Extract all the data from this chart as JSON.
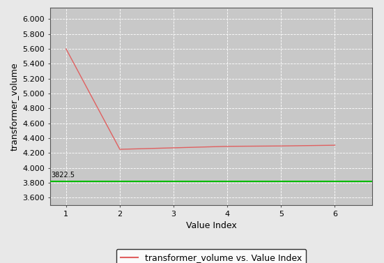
{
  "x": [
    1,
    2,
    3,
    4,
    5,
    6
  ],
  "y_red": [
    5600,
    4250,
    4270,
    4290,
    4295,
    4305
  ],
  "y_green": 3822.5,
  "green_label": "3822.5",
  "xlabel": "Value Index",
  "ylabel": "transformer_volume",
  "legend_label": "transformer_volume vs. Value Index",
  "xlim": [
    0.7,
    6.7
  ],
  "ylim": [
    3500,
    6150
  ],
  "yticks": [
    3600,
    3800,
    4000,
    4200,
    4400,
    4600,
    4800,
    5000,
    5200,
    5400,
    5600,
    5800,
    6000
  ],
  "ytick_labels": [
    "3.600",
    "3.800",
    "4.000",
    "4.200",
    "4.400",
    "4.600",
    "4.800",
    "5.000",
    "5.200",
    "5.400",
    "5.600",
    "5.800",
    "6.000"
  ],
  "xticks": [
    1,
    2,
    3,
    4,
    5,
    6
  ],
  "plot_bg_color": "#c8c8c8",
  "fig_bg_color": "#e8e8e8",
  "red_color": "#e06060",
  "green_color": "#00bb00",
  "grid_color": "#ffffff",
  "legend_font_size": 9,
  "axis_label_font_size": 9,
  "tick_font_size": 8,
  "green_text_color": "#000000"
}
